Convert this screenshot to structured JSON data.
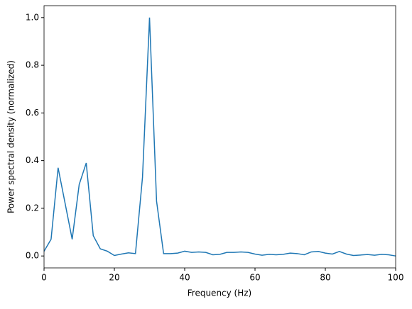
{
  "chart_data": {
    "type": "line",
    "xlabel": "Frequency (Hz)",
    "ylabel": "Power spectral density (normalized)",
    "x": [
      0,
      2,
      4,
      6,
      8,
      10,
      12,
      14,
      16,
      18,
      20,
      22,
      24,
      26,
      28,
      30,
      32,
      34,
      36,
      38,
      40,
      42,
      44,
      46,
      48,
      50,
      52,
      54,
      56,
      58,
      60,
      62,
      64,
      66,
      68,
      70,
      72,
      74,
      76,
      78,
      80,
      82,
      84,
      86,
      88,
      90,
      92,
      94,
      96,
      98,
      100
    ],
    "series": [
      {
        "color": "#1f77b4",
        "values": [
          0.02,
          0.07,
          0.37,
          0.22,
          0.07,
          0.3,
          0.39,
          0.085,
          0.03,
          0.02,
          0.002,
          0.008,
          0.013,
          0.01,
          0.33,
          1.0,
          0.23,
          0.01,
          0.01,
          0.012,
          0.02,
          0.015,
          0.017,
          0.015,
          0.005,
          0.007,
          0.015,
          0.015,
          0.017,
          0.015,
          0.008,
          0.003,
          0.007,
          0.005,
          0.007,
          0.012,
          0.01,
          0.005,
          0.017,
          0.019,
          0.012,
          0.008,
          0.019,
          0.008,
          0.002,
          0.004,
          0.006,
          0.003,
          0.007,
          0.005,
          0.0
        ]
      }
    ],
    "xlim": [
      0,
      100
    ],
    "ylim": [
      -0.05,
      1.05
    ],
    "xticks": [
      0,
      20,
      40,
      60,
      80,
      100
    ],
    "yticks": [
      {
        "value": 0,
        "label": "0.0"
      },
      {
        "value": 0.2,
        "label": "0.2"
      },
      {
        "value": 0.4,
        "label": "0.4"
      },
      {
        "value": 0.6,
        "label": "0.6"
      },
      {
        "value": 0.8,
        "label": "0.8"
      },
      {
        "value": 1.0,
        "label": "1.0"
      }
    ]
  }
}
